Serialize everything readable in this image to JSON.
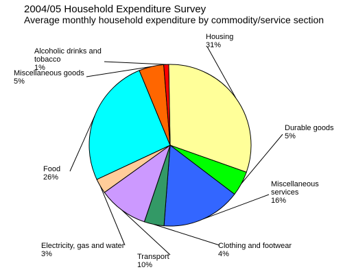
{
  "chart_data": {
    "type": "pie",
    "title": "2004/05 Household Expenditure Survey",
    "subtitle": "Average monthly household expenditure by commodity/service section",
    "slices": [
      {
        "name": "Housing",
        "label_lines": [
          "Housing"
        ],
        "value": 31,
        "pct_label": "31%",
        "color": "#ffff99"
      },
      {
        "name": "Durable goods",
        "label_lines": [
          "Durable goods"
        ],
        "value": 5,
        "pct_label": "5%",
        "color": "#00ff00"
      },
      {
        "name": "Miscellaneous services",
        "label_lines": [
          "Miscellaneous",
          "services"
        ],
        "value": 16,
        "pct_label": "16%",
        "color": "#3366ff"
      },
      {
        "name": "Clothing and footwear",
        "label_lines": [
          "Clothing and footwear"
        ],
        "value": 4,
        "pct_label": "4%",
        "color": "#339966"
      },
      {
        "name": "Transport",
        "label_lines": [
          "Transport"
        ],
        "value": 10,
        "pct_label": "10%",
        "color": "#cc99ff"
      },
      {
        "name": "Electricity, gas and water",
        "label_lines": [
          "Electricity, gas and water"
        ],
        "value": 3,
        "pct_label": "3%",
        "color": "#ffcc99"
      },
      {
        "name": "Food",
        "label_lines": [
          "Food"
        ],
        "value": 26,
        "pct_label": "26%",
        "color": "#00ffff"
      },
      {
        "name": "Miscellaneous goods",
        "label_lines": [
          "Miscellaneous goods"
        ],
        "value": 5,
        "pct_label": "5%",
        "color": "#ff6600"
      },
      {
        "name": "Alcoholic drinks and tobacco",
        "label_lines": [
          "Alcoholic drinks and",
          "tobacco"
        ],
        "value": 1,
        "pct_label": "1%",
        "color": "#ff0000"
      }
    ]
  }
}
